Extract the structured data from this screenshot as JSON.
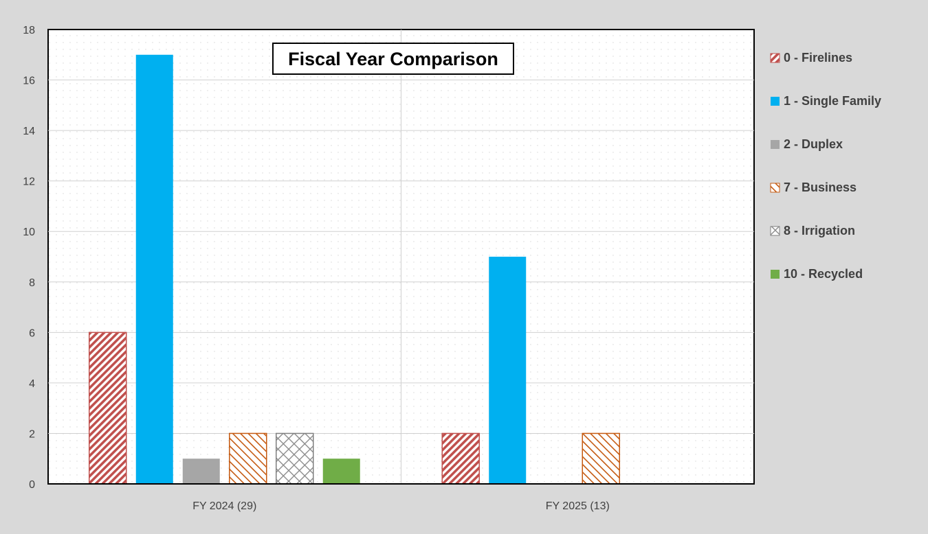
{
  "chart_data": {
    "type": "bar",
    "title": "Fiscal Year Comparison",
    "xlabel": "",
    "ylabel": "",
    "categories": [
      "FY 2024 (29)",
      "FY 2025 (13)"
    ],
    "ylim": [
      0,
      18
    ],
    "yticks": [
      0,
      2,
      4,
      6,
      8,
      10,
      12,
      14,
      16,
      18
    ],
    "grid": true,
    "legend_position": "right",
    "series": [
      {
        "name": "0 - Firelines",
        "values": [
          6,
          2
        ],
        "color": "#c0504d",
        "pattern": "diagonal-hatch"
      },
      {
        "name": "1 - Single Family",
        "values": [
          17,
          9
        ],
        "color": "#00b0f0",
        "pattern": "solid"
      },
      {
        "name": "2 - Duplex",
        "values": [
          1,
          0
        ],
        "color": "#a6a6a6",
        "pattern": "solid"
      },
      {
        "name": "7 - Business",
        "values": [
          2,
          2
        ],
        "color": "#c55a11",
        "pattern": "light-diagonal-hatch"
      },
      {
        "name": "8 - Irrigation",
        "values": [
          2,
          0
        ],
        "color": "#7f7f7f",
        "pattern": "crosshatch"
      },
      {
        "name": "10 - Recycled",
        "values": [
          1,
          0
        ],
        "color": "#70ad47",
        "pattern": "solid"
      }
    ]
  }
}
